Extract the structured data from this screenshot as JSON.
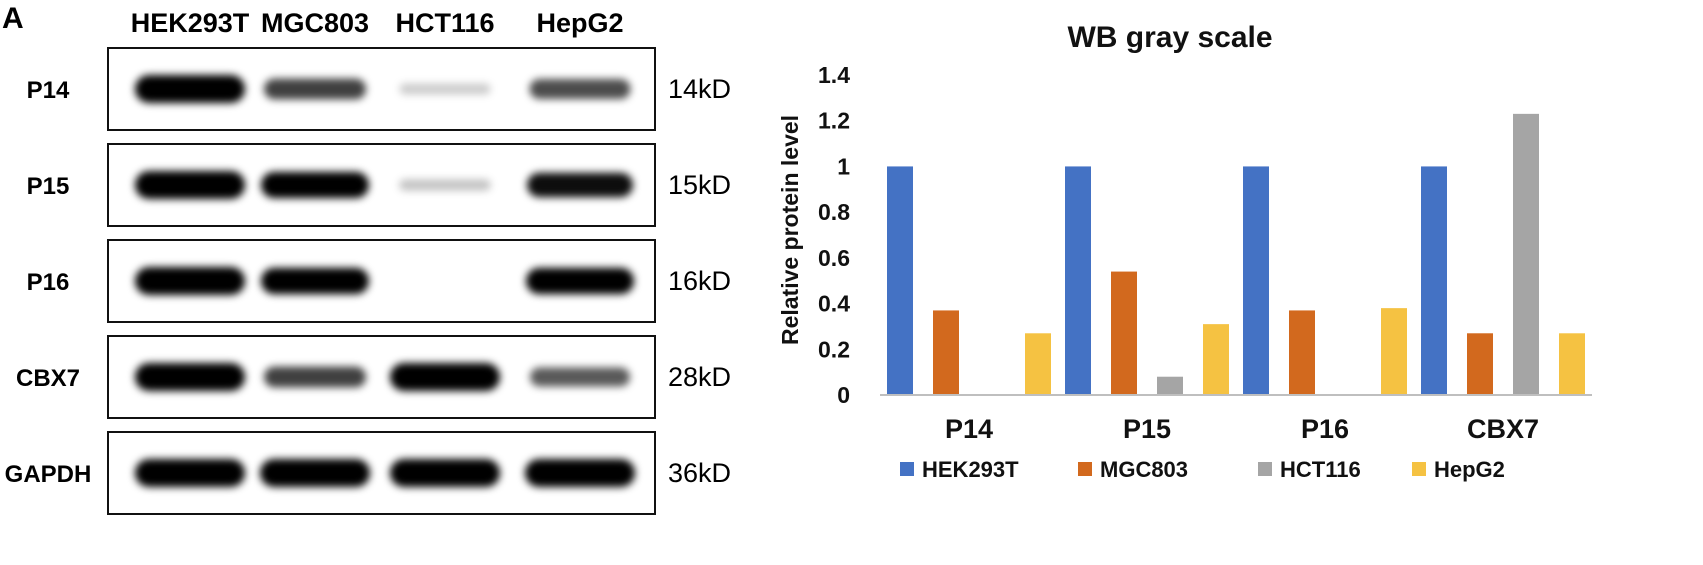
{
  "panel": {
    "letter": "A"
  },
  "blot": {
    "lanes": [
      "HEK293T",
      "MGC803",
      "HCT116",
      "HepG2"
    ],
    "rows": [
      {
        "label": "P14",
        "kd": "14kD",
        "intensity": [
          1.0,
          0.6,
          0.05,
          0.55
        ]
      },
      {
        "label": "P15",
        "kd": "15kD",
        "intensity": [
          1.0,
          0.9,
          0.08,
          0.8
        ]
      },
      {
        "label": "P16",
        "kd": "16kD",
        "intensity": [
          1.0,
          0.9,
          0.0,
          0.9
        ]
      },
      {
        "label": "CBX7",
        "kd": "28kD",
        "intensity": [
          1.0,
          0.6,
          1.0,
          0.5
        ]
      },
      {
        "label": "GAPDH",
        "kd": "36kD",
        "intensity": [
          1.0,
          1.0,
          1.0,
          1.0
        ]
      }
    ]
  },
  "chart_data": {
    "type": "bar",
    "title": "WB gray scale",
    "ylabel": "Relative protein level",
    "xlabel": "",
    "categories": [
      "P14",
      "P15",
      "P16",
      "CBX7"
    ],
    "ylim": [
      0,
      1.4
    ],
    "yticks": [
      "0",
      "0.2",
      "0.4",
      "0.6",
      "0.8",
      "1",
      "1.2",
      "1.4"
    ],
    "grid": false,
    "legend_position": "bottom",
    "series": [
      {
        "name": "HEK293T",
        "color": "#4472C4",
        "values": [
          1.0,
          1.0,
          1.0,
          1.0
        ]
      },
      {
        "name": "MGC803",
        "color": "#D2691E",
        "values": [
          0.37,
          0.54,
          0.37,
          0.27
        ]
      },
      {
        "name": "HCT116",
        "color": "#A5A5A5",
        "values": [
          0.0,
          0.08,
          0.0,
          1.23
        ]
      },
      {
        "name": "HepG2",
        "color": "#F5C242",
        "values": [
          0.27,
          0.31,
          0.38,
          0.27
        ]
      }
    ]
  }
}
